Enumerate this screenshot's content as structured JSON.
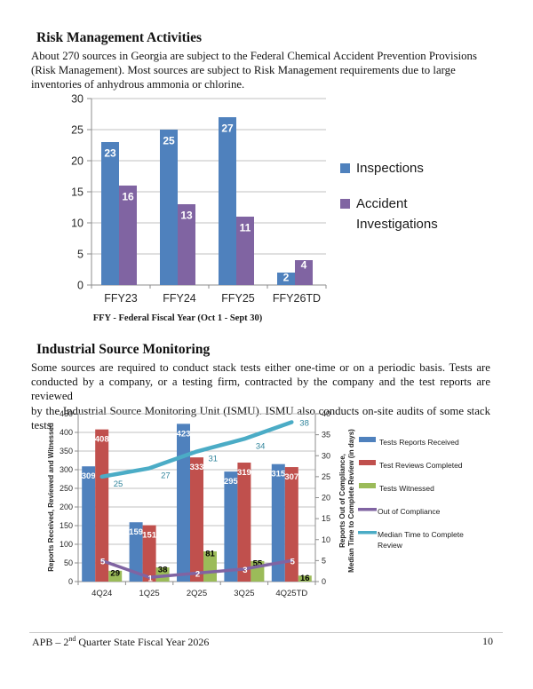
{
  "sections": [
    {
      "heading": "Risk Management Activities",
      "body_lines": [
        "About 270 sources in Georgia are subject to the Federal Chemical Accident Prevention Provisions",
        "(Risk Management).  Most sources are subject to Risk Management requirements due to large",
        "inventories of anhydrous ammonia or chlorine."
      ]
    },
    {
      "heading": "Industrial Source Monitoring",
      "body_lines": [
        "Some sources are required to conduct stack tests either one-time or on a periodic basis. Tests are",
        "conducted by a company, or a testing firm, contracted by the company and the test reports are reviewed",
        "by the Industrial Source Monitoring Unit (ISMU). ISMU also conducts on-site audits of some stack tests."
      ]
    }
  ],
  "footer": {
    "prefix": "APB – 2",
    "superscript": "nd",
    "suffix": " Quarter State Fiscal Year 2026",
    "page_number": "10"
  },
  "chart_data": [
    {
      "type": "bar",
      "title": "",
      "categories": [
        "FFY23",
        "FFY24",
        "FFY25",
        "FFY26TD"
      ],
      "series": [
        {
          "name": "Inspections",
          "color": "#4f81bd",
          "values": [
            23,
            25,
            27,
            2
          ]
        },
        {
          "name": "Accident Investigations",
          "color": "#8064a2",
          "values": [
            16,
            13,
            11,
            4
          ]
        }
      ],
      "ylim": [
        0,
        30
      ],
      "yticks": [
        0,
        5,
        10,
        15,
        20,
        25,
        30
      ],
      "grid": true,
      "legend_position": "right",
      "caption": "FFY - Federal Fiscal Year (Oct 1 - Sept 30)"
    },
    {
      "type": "bar+line",
      "title": "",
      "categories": [
        "4Q24",
        "1Q25",
        "2Q25",
        "3Q25",
        "4Q25TD"
      ],
      "series": [
        {
          "name": "Tests Reports Received",
          "kind": "bar",
          "axis": "left",
          "color": "#4f81bd",
          "values": [
            309,
            159,
            423,
            295,
            315
          ]
        },
        {
          "name": "Test Reviews Completed",
          "kind": "bar",
          "axis": "left",
          "color": "#c0504d",
          "values": [
            408,
            151,
            333,
            319,
            307
          ]
        },
        {
          "name": "Tests Witnessed",
          "kind": "bar",
          "axis": "left",
          "color": "#9bbb59",
          "values": [
            29,
            38,
            81,
            55,
            16
          ]
        },
        {
          "name": "Out of Compliance",
          "kind": "line",
          "axis": "right",
          "color": "#8064a2",
          "values": [
            5,
            1,
            2,
            3,
            5
          ]
        },
        {
          "name": "Median Time to Complete Review",
          "kind": "line",
          "axis": "right",
          "color": "#4bacc6",
          "values": [
            25,
            27,
            31,
            34,
            38
          ]
        }
      ],
      "left_axis": {
        "label": "Reports Received, Reviewed and Witnessed",
        "min": 0,
        "max": 450,
        "step": 50
      },
      "right_axis": {
        "label_lines": [
          "Reports Out of Compliance,",
          "Median Time to Complete Review (in days)"
        ],
        "min": 0,
        "max": 40,
        "step": 5
      },
      "grid": true,
      "legend_position": "right"
    }
  ]
}
